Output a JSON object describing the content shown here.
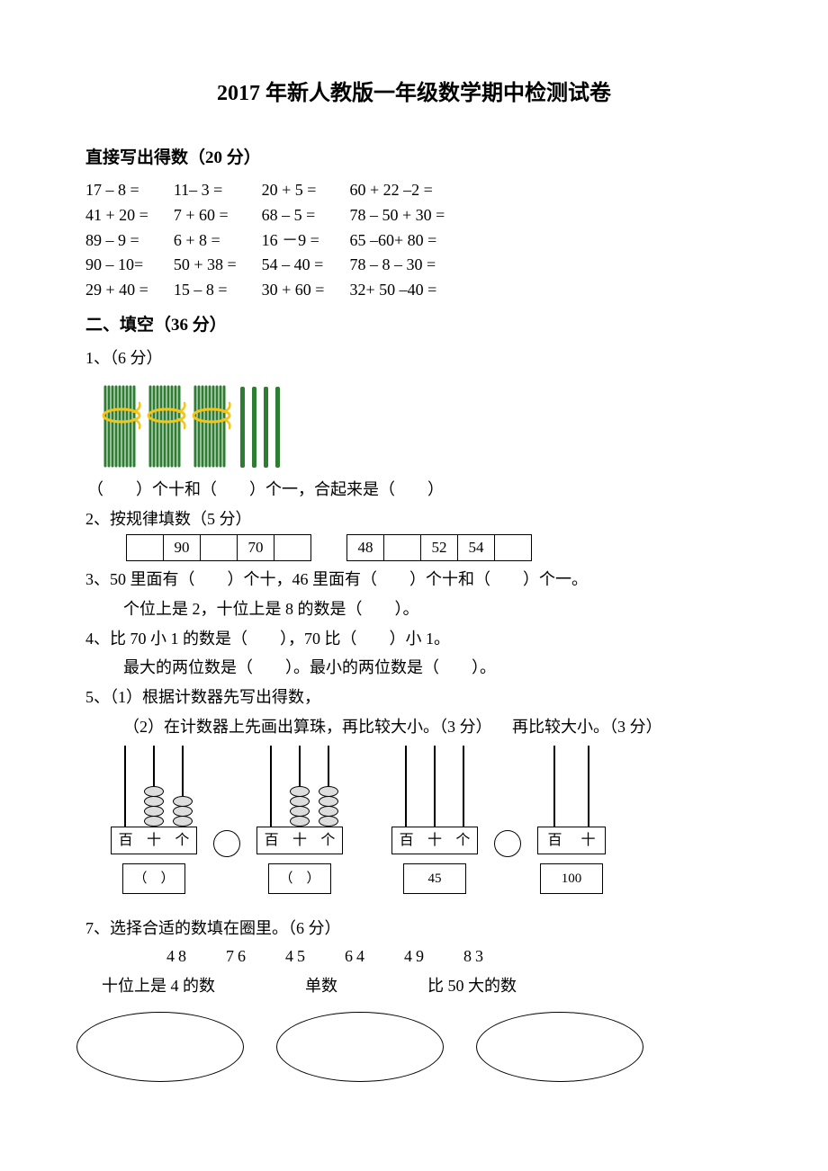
{
  "title": "2017 年新人教版一年级数学期中检测试卷",
  "section1": {
    "header": "直接写出得数（20 分）",
    "rows": [
      [
        "17 – 8 =",
        "11– 3 =",
        "20 + 5 =",
        "60 + 22 –2 ="
      ],
      [
        "41 + 20 =",
        "7 + 60 =",
        "68 – 5 =",
        "78 – 50 + 30 ="
      ],
      [
        "89 – 9 =",
        "6 + 8 =",
        "16 －9 =",
        "65 –60+ 80 ="
      ],
      [
        "90 – 10=",
        "50 + 38 =",
        "54 – 40 =",
        "78 – 8 – 30 ="
      ],
      [
        "29 + 40 =",
        "15 – 8 =",
        "30 + 60 =",
        "32+ 50 –40 ="
      ]
    ]
  },
  "section2": {
    "header": "二、填空（36 分）",
    "q1_label": "1、（6 分）",
    "q1_text": "（　　）个十和（　　）个一，合起来是（　　）",
    "q1_bundle_color": "#2e7d32",
    "q1_tie_color": "#f5c518",
    "q1_bundles": 3,
    "q1_singles": 4,
    "q2_label": "2、按规律填数（5 分）",
    "q2_seq1": [
      "",
      "90",
      "",
      "70",
      ""
    ],
    "q2_seq2": [
      "48",
      "",
      "52",
      "54",
      ""
    ],
    "q3_line1": "3、50 里面有（　　）个十，46 里面有（　　）个十和（　　）个一。",
    "q3_line2": "个位上是 2，十位上是 8 的数是（　　）。",
    "q4_line1": "4、比 70 小 1 的数是（　　），70 比（　　）小 1。",
    "q4_line2": "最大的两位数是（　　）。最小的两位数是（　　）。",
    "q5_line1": "5、（1）根据计数器先写出得数，",
    "q5_line2_a": "（2）在计数器上先画出算珠，再比较大小。（3 分）",
    "q5_line2_b": "再比较大小。（3 分）",
    "q5_labels3": [
      "百",
      "十",
      "个"
    ],
    "q5_labels2": [
      "百",
      "十"
    ],
    "q5_abacus1_beads": [
      0,
      4,
      3
    ],
    "q5_abacus2_beads": [
      0,
      4,
      4
    ],
    "q5_box_blank": "（　）",
    "q5_val3": "45",
    "q5_val4": "100",
    "q7_label": "7、选择合适的数填在圈里。（6 分）",
    "q7_numbers": [
      "48",
      "76",
      "45",
      "64",
      "49",
      "83"
    ],
    "q7_cat1": "十位上是 4 的数",
    "q7_cat2": "单数",
    "q7_cat3": "比 50 大的数"
  }
}
